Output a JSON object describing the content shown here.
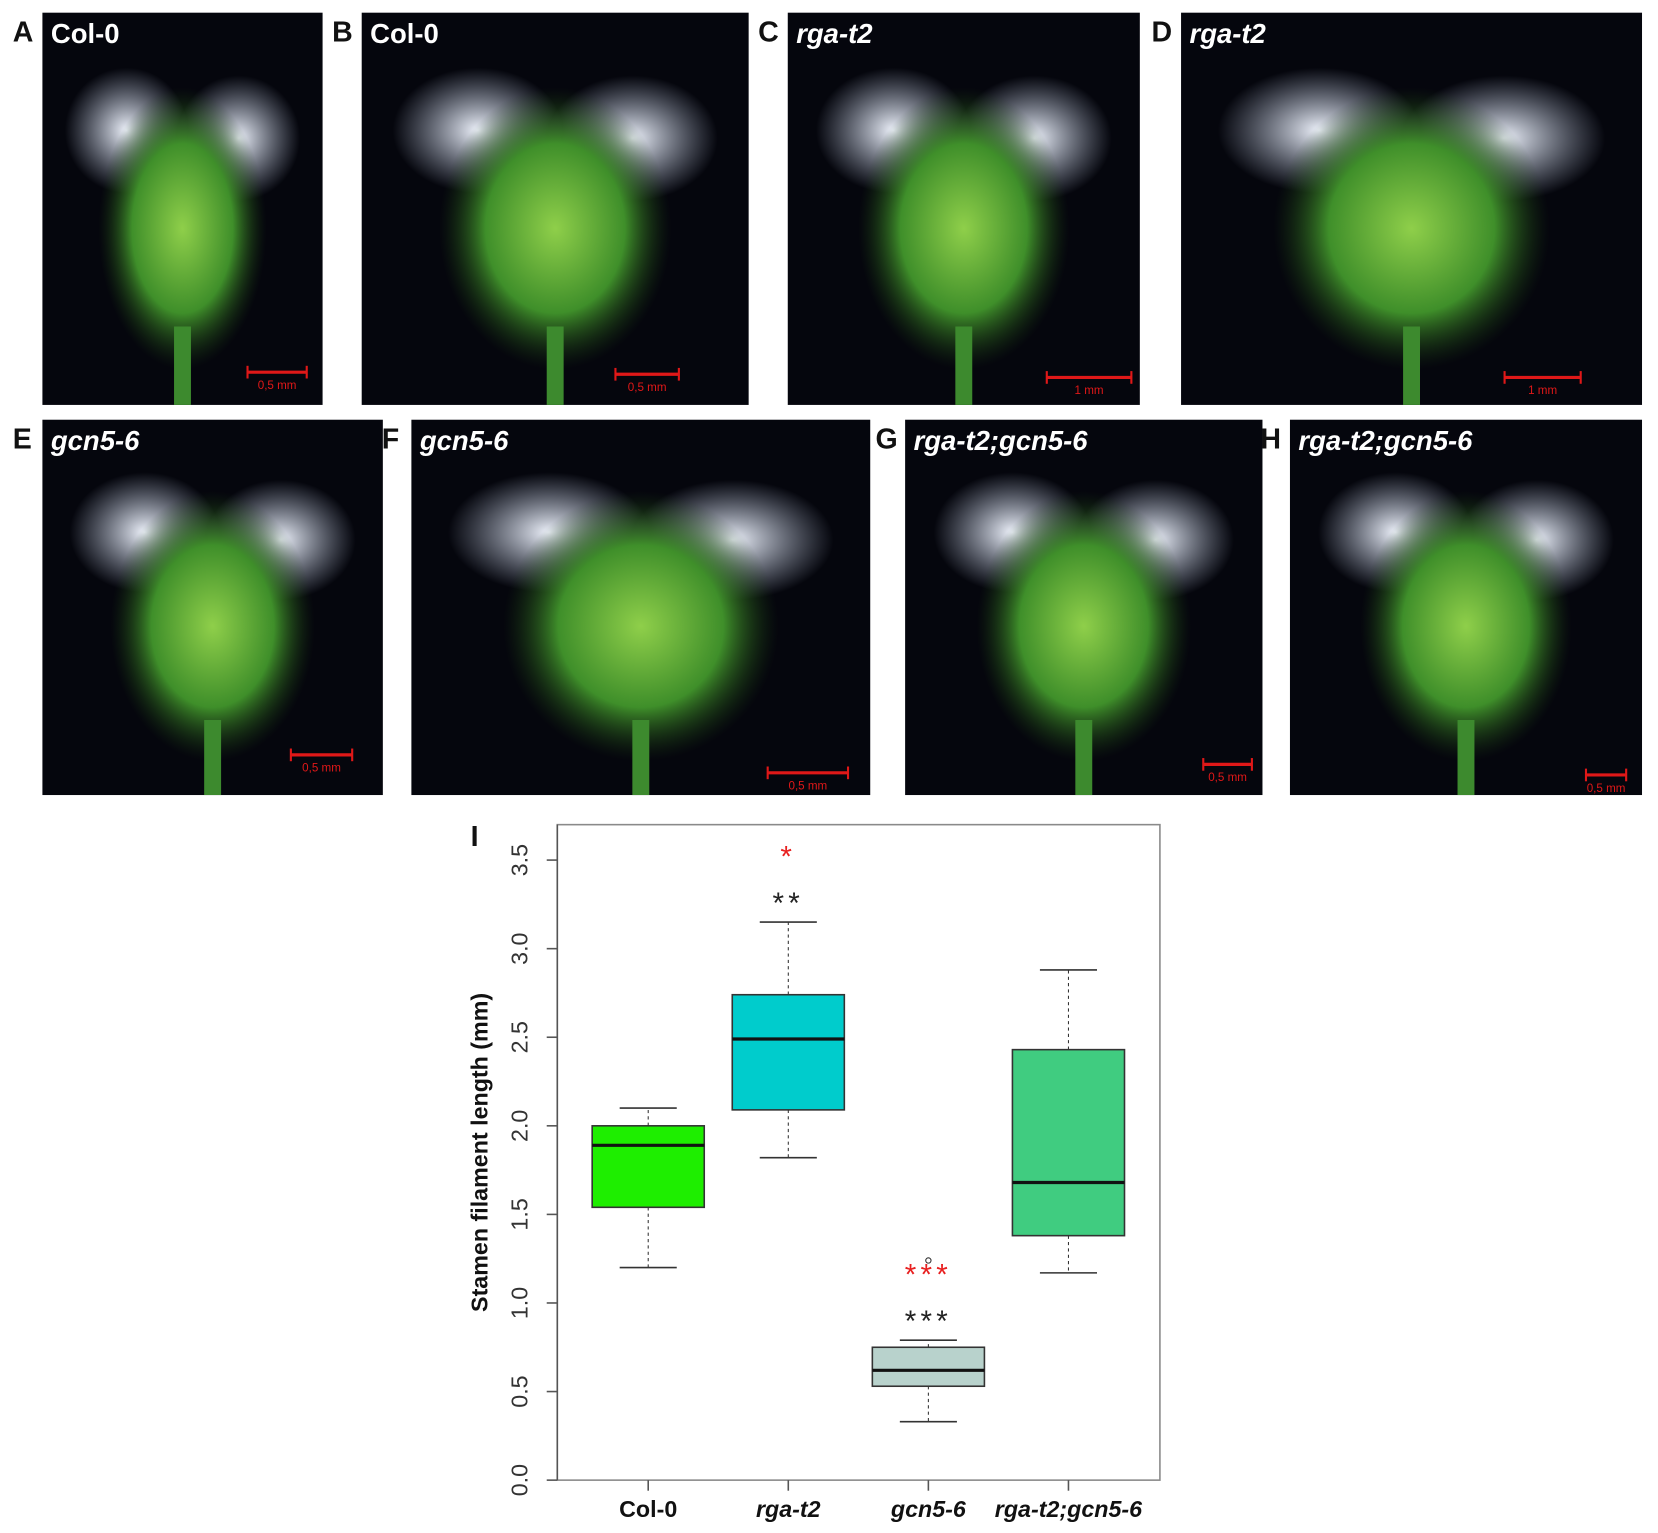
{
  "panels": [
    {
      "letter": "A",
      "genotype": "Col-0",
      "italic": false,
      "scale_bar": "0,5 mm"
    },
    {
      "letter": "B",
      "genotype": "Col-0",
      "italic": false,
      "scale_bar": "0,5 mm"
    },
    {
      "letter": "C",
      "genotype": "rga-t2",
      "italic": true,
      "scale_bar": "1 mm"
    },
    {
      "letter": "D",
      "genotype": "rga-t2",
      "italic": true,
      "scale_bar": "1 mm"
    },
    {
      "letter": "E",
      "genotype": "gcn5-6",
      "italic": true,
      "scale_bar": "0,5 mm"
    },
    {
      "letter": "F",
      "genotype": "gcn5-6",
      "italic": true,
      "scale_bar": "0,5 mm"
    },
    {
      "letter": "G",
      "genotype": "rga-t2;gcn5-6",
      "italic": true,
      "scale_bar": "0,5 mm"
    },
    {
      "letter": "H",
      "genotype": "rga-t2;gcn5-6",
      "italic": true,
      "scale_bar": "0,5 mm"
    }
  ],
  "chart_data": {
    "type": "box",
    "panel_letter": "I",
    "ylabel": "Stamen filament length (mm)",
    "categories": [
      "Col-0",
      "rga-t2",
      "gcn5-6",
      "rga-t2;gcn5-6"
    ],
    "italic_categories": [
      false,
      true,
      true,
      true
    ],
    "boxes": [
      {
        "color": "#1eee00",
        "whisker_low": 1.2,
        "q1": 1.54,
        "median": 1.89,
        "q3": 2.0,
        "whisker_high": 2.1
      },
      {
        "color": "#00cccc",
        "whisker_low": 1.82,
        "q1": 2.09,
        "median": 2.49,
        "q3": 2.74,
        "whisker_high": 3.15,
        "significance": [
          {
            "text": "**",
            "color": "#222222"
          },
          {
            "text": "*",
            "color": "#e82020"
          }
        ]
      },
      {
        "color": "#b8d2cc",
        "whisker_low": 0.33,
        "q1": 0.53,
        "median": 0.62,
        "q3": 0.75,
        "whisker_high": 0.79,
        "outliers": [
          1.24
        ],
        "significance": [
          {
            "text": "***",
            "color": "#222222"
          },
          {
            "text": "***",
            "color": "#e82020"
          }
        ]
      },
      {
        "color": "#40cc80",
        "whisker_low": 1.17,
        "q1": 1.38,
        "median": 1.68,
        "q3": 2.43,
        "whisker_high": 2.88
      }
    ],
    "ylim": [
      0,
      3.7
    ],
    "yticks": [
      {
        "value": 0,
        "label": "0.0"
      },
      {
        "value": 0.5,
        "label": "0.5"
      },
      {
        "value": 1,
        "label": "1.0"
      },
      {
        "value": 1.5,
        "label": "1.5"
      },
      {
        "value": 2,
        "label": "2.0"
      },
      {
        "value": 2.5,
        "label": "2.5"
      },
      {
        "value": 3,
        "label": "3.0"
      },
      {
        "value": 3.5,
        "label": "3.5"
      }
    ]
  }
}
